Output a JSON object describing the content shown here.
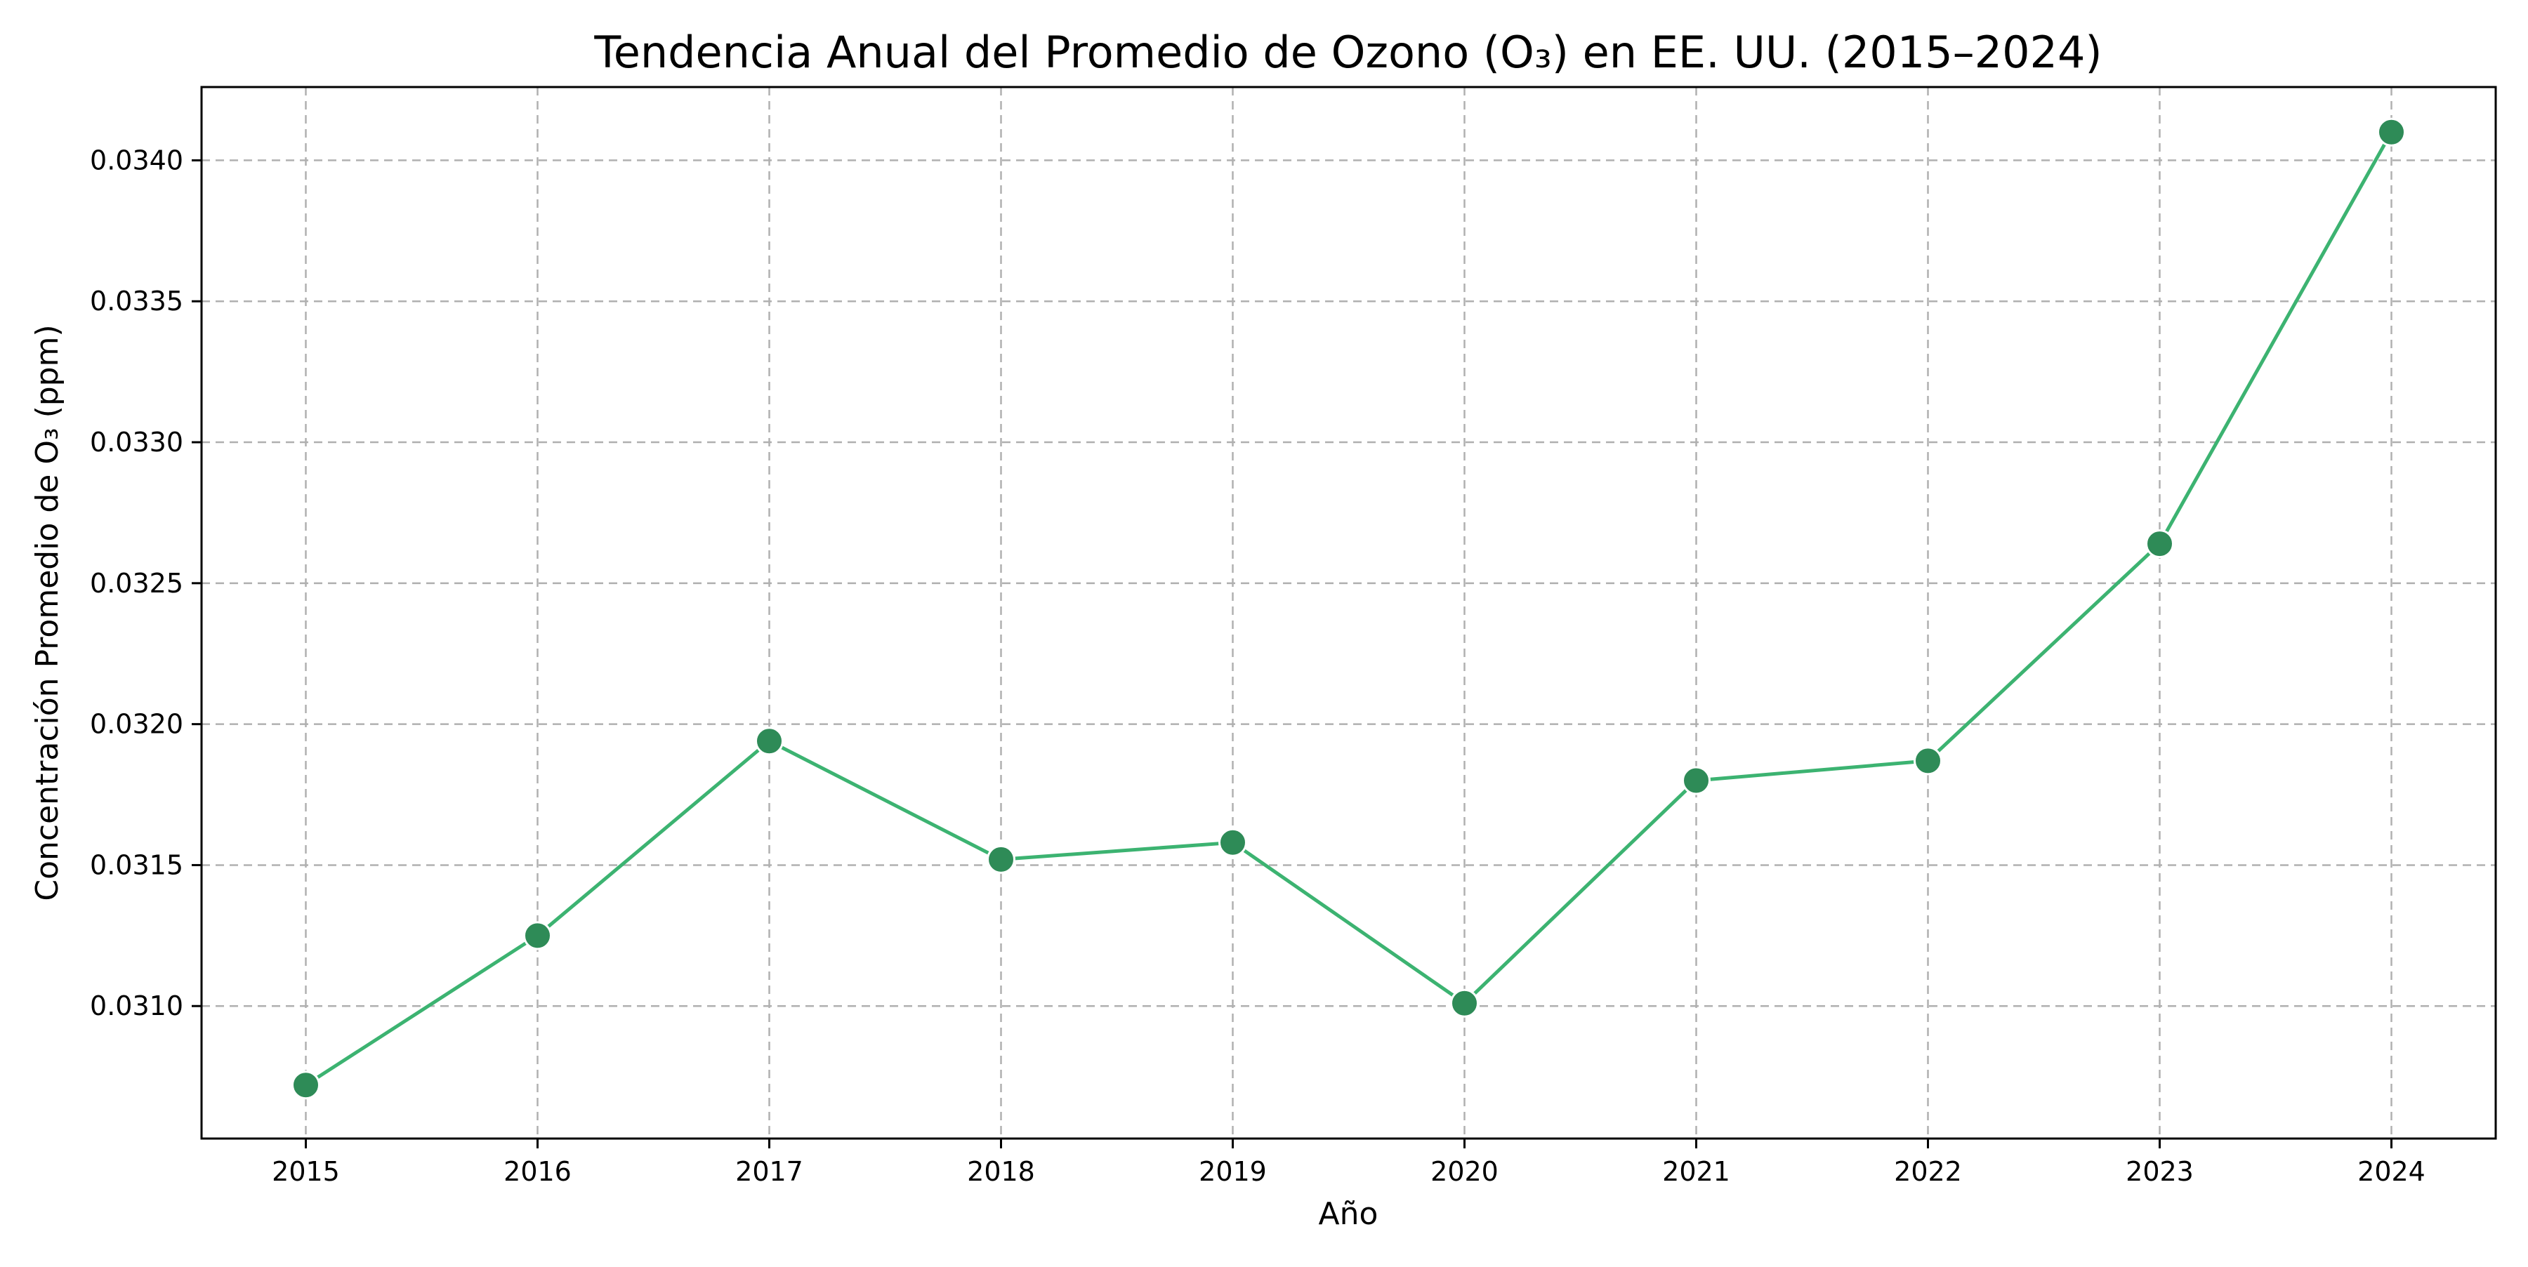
{
  "chart_data": {
    "type": "line",
    "title": "Tendencia Anual del Promedio de Ozono (O₃) en EE. UU. (2015–2024)",
    "xlabel": "Año",
    "ylabel": "Concentración Promedio de O₃ (ppm)",
    "x": [
      2015,
      2016,
      2017,
      2018,
      2019,
      2020,
      2021,
      2022,
      2023,
      2024
    ],
    "x_tick_labels": [
      "2015",
      "2016",
      "2017",
      "2018",
      "2019",
      "2020",
      "2021",
      "2022",
      "2023",
      "2024"
    ],
    "y_ticks": [
      0.031,
      0.0315,
      0.032,
      0.0325,
      0.033,
      0.0335,
      0.034
    ],
    "y_tick_labels": [
      "0.0310",
      "0.0315",
      "0.0320",
      "0.0325",
      "0.0330",
      "0.0335",
      "0.0340"
    ],
    "ylim": [
      0.03053,
      0.03426
    ],
    "xlim": [
      2014.55,
      2024.45
    ],
    "grid": true,
    "series": [
      {
        "values": [
          0.03072,
          0.03125,
          0.03194,
          0.03152,
          0.03158,
          0.03101,
          0.0318,
          0.03187,
          0.03264,
          0.0341
        ],
        "line_color": "#3cb371",
        "marker_color": "#2e8b57",
        "marker_edge_color": "#ffffff"
      }
    ]
  }
}
